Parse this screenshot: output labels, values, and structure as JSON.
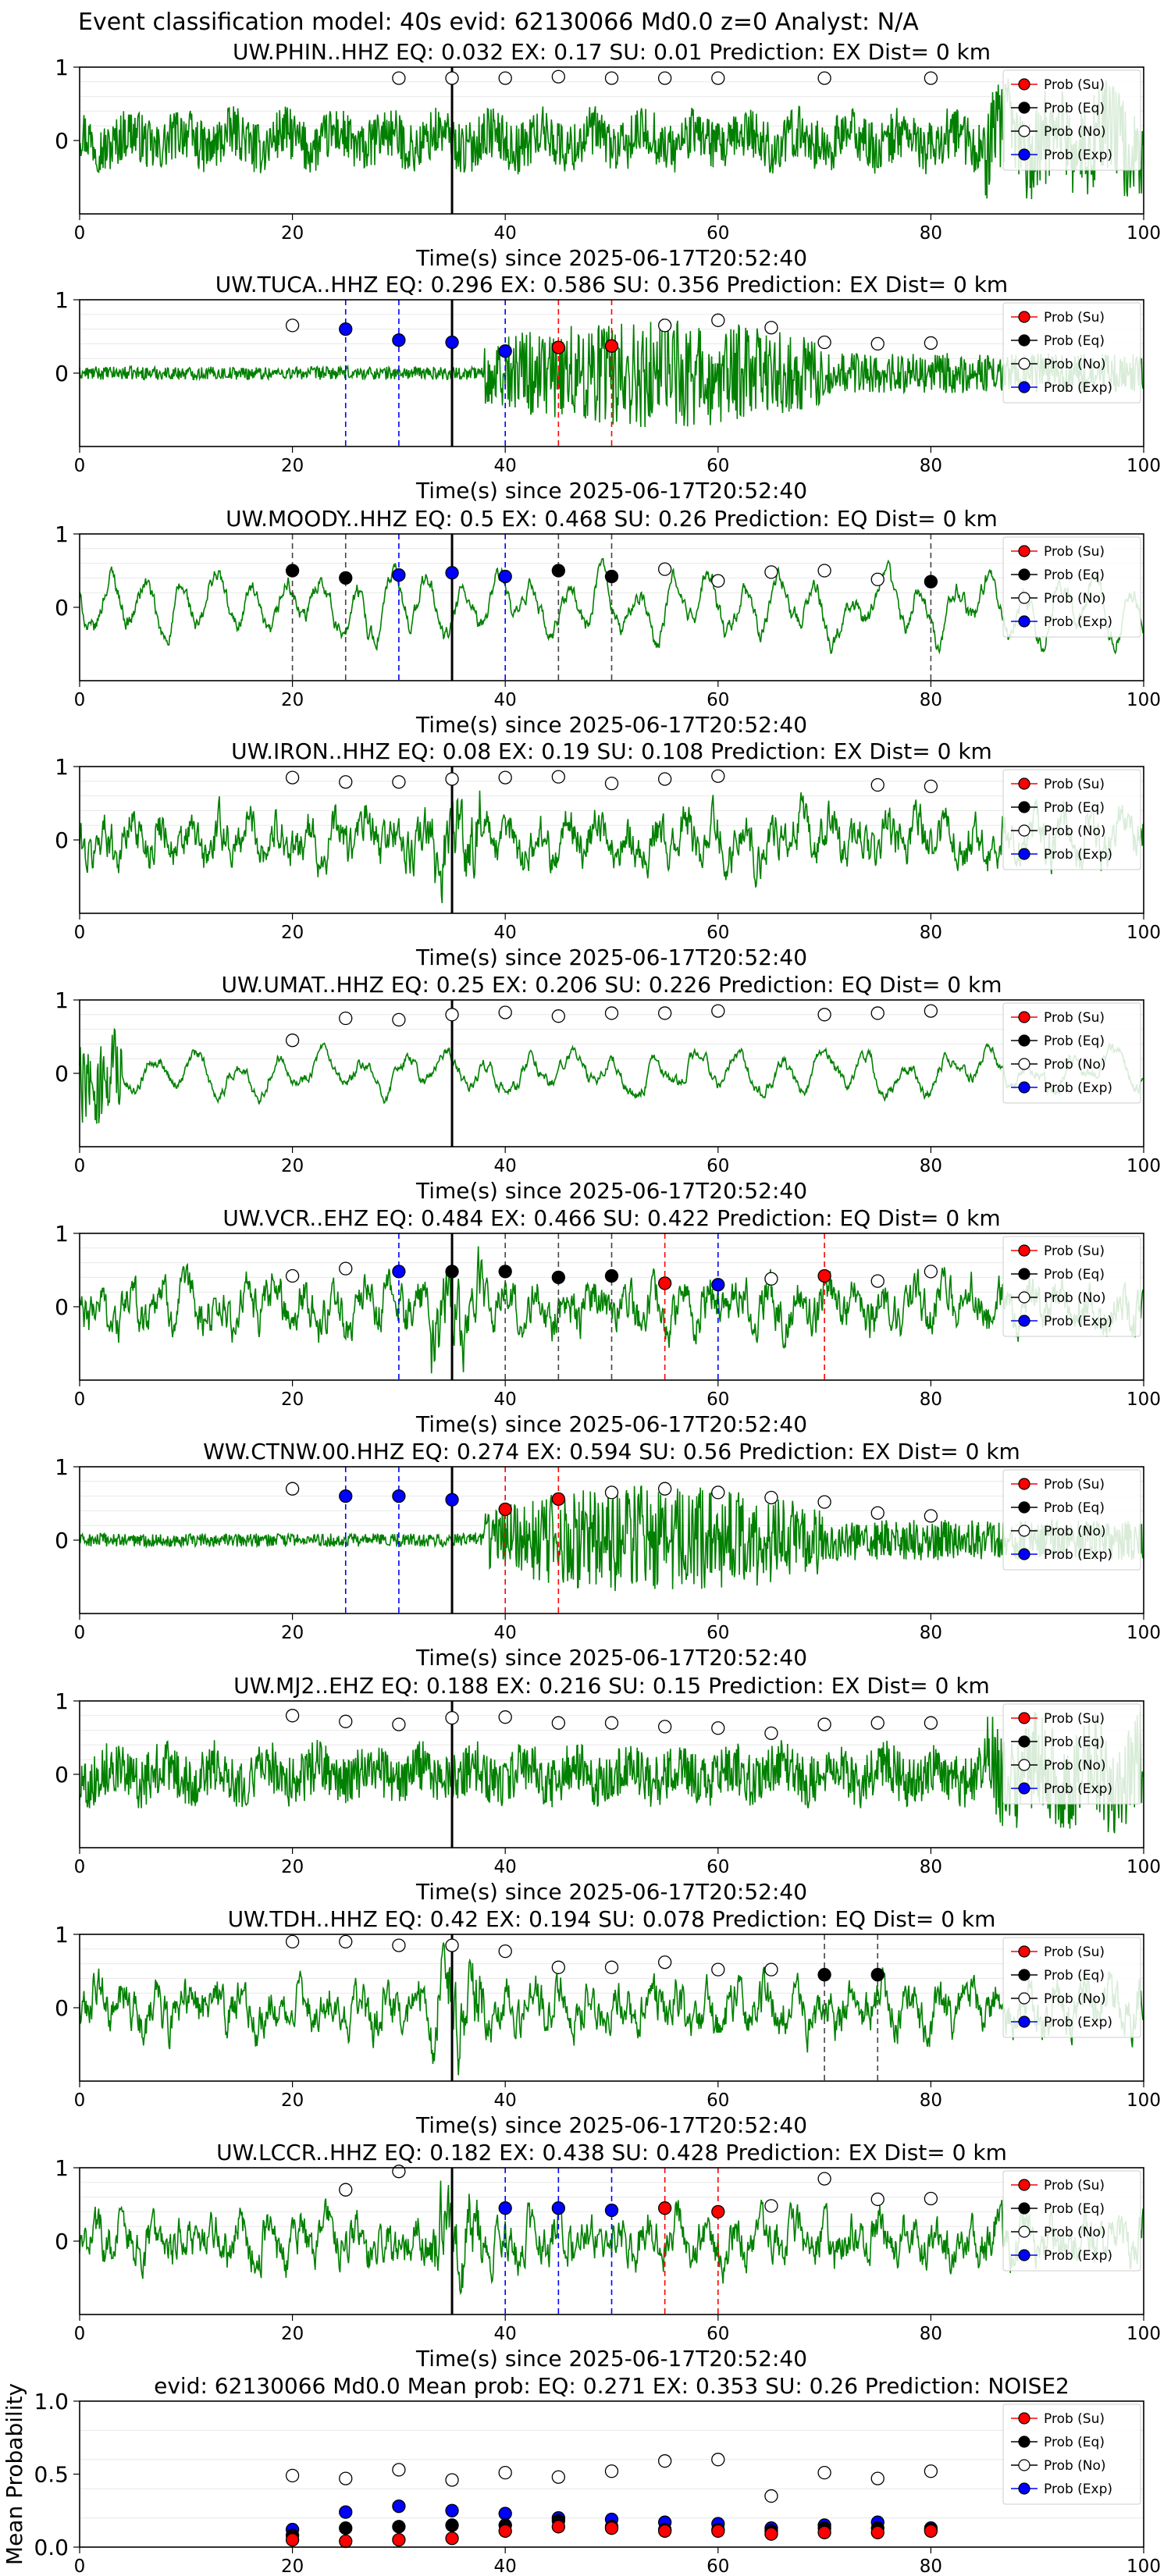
{
  "suptitle": "Event classification model: 40s evid: 62130066 Md0.0 z=0 Analyst: N/A",
  "legend_labels": [
    "Prob (Su)",
    "Prob (Eq)",
    "Prob (No)",
    "Prob (Exp)"
  ],
  "class_colors": {
    "su": "#ff0000",
    "eq": "#000000",
    "no": "#ffffff",
    "exp": "#0000ff"
  },
  "trace_color": "#008000",
  "window_times": [
    20,
    25,
    30,
    35,
    40,
    45,
    50,
    55,
    60,
    65,
    70,
    75,
    80
  ],
  "chart_data": [
    {
      "type": "line",
      "title": "UW.PHIN..HHZ   EQ: 0.032  EX: 0.17  SU: 0.01   Prediction: EX    Dist= 0 km",
      "xlabel": "Time(s) since 2025-06-17T20:52:40",
      "xlim": [
        0,
        100
      ],
      "ylim": [
        -1,
        1
      ],
      "xticks": [
        0,
        20,
        40,
        60,
        80,
        100
      ],
      "yticks": [
        1,
        0
      ],
      "onset_line_x": 35,
      "waveform": "high_freq",
      "points": [
        {
          "x": 30,
          "y": 0.85,
          "cls": "no"
        },
        {
          "x": 35,
          "y": 0.85,
          "cls": "no"
        },
        {
          "x": 40,
          "y": 0.85,
          "cls": "no"
        },
        {
          "x": 45,
          "y": 0.87,
          "cls": "no"
        },
        {
          "x": 50,
          "y": 0.85,
          "cls": "no"
        },
        {
          "x": 55,
          "y": 0.85,
          "cls": "no"
        },
        {
          "x": 60,
          "y": 0.85,
          "cls": "no"
        },
        {
          "x": 70,
          "y": 0.85,
          "cls": "no"
        },
        {
          "x": 80,
          "y": 0.85,
          "cls": "no"
        }
      ]
    },
    {
      "type": "line",
      "title": "UW.TUCA..HHZ   EQ: 0.296  EX: 0.586  SU: 0.356   Prediction: EX    Dist= 0 km",
      "xlabel": "Time(s) since 2025-06-17T20:52:40",
      "xlim": [
        0,
        100
      ],
      "ylim": [
        -1,
        1
      ],
      "xticks": [
        0,
        20,
        40,
        60,
        80,
        100
      ],
      "yticks": [
        1,
        0
      ],
      "onset_line_x": 35,
      "waveform": "burst",
      "points": [
        {
          "x": 20,
          "y": 0.65,
          "cls": "no"
        },
        {
          "x": 25,
          "y": 0.6,
          "cls": "exp"
        },
        {
          "x": 30,
          "y": 0.45,
          "cls": "exp"
        },
        {
          "x": 35,
          "y": 0.42,
          "cls": "exp"
        },
        {
          "x": 40,
          "y": 0.3,
          "cls": "exp"
        },
        {
          "x": 45,
          "y": 0.35,
          "cls": "su"
        },
        {
          "x": 50,
          "y": 0.37,
          "cls": "su"
        },
        {
          "x": 55,
          "y": 0.65,
          "cls": "no"
        },
        {
          "x": 60,
          "y": 0.72,
          "cls": "no"
        },
        {
          "x": 65,
          "y": 0.62,
          "cls": "no"
        },
        {
          "x": 70,
          "y": 0.42,
          "cls": "no"
        },
        {
          "x": 75,
          "y": 0.4,
          "cls": "no"
        },
        {
          "x": 80,
          "y": 0.41,
          "cls": "no"
        }
      ]
    },
    {
      "type": "line",
      "title": "UW.MOODY..HHZ   EQ: 0.5  EX: 0.468  SU: 0.26   Prediction: EQ    Dist= 0 km",
      "xlabel": "Time(s) since 2025-06-17T20:52:40",
      "xlim": [
        0,
        100
      ],
      "ylim": [
        -1,
        1
      ],
      "xticks": [
        0,
        20,
        40,
        60,
        80,
        100
      ],
      "yticks": [
        1,
        0
      ],
      "onset_line_x": 35,
      "waveform": "low_freq",
      "points": [
        {
          "x": 20,
          "y": 0.5,
          "cls": "eq"
        },
        {
          "x": 25,
          "y": 0.4,
          "cls": "eq"
        },
        {
          "x": 30,
          "y": 0.44,
          "cls": "exp"
        },
        {
          "x": 35,
          "y": 0.47,
          "cls": "exp"
        },
        {
          "x": 40,
          "y": 0.42,
          "cls": "exp"
        },
        {
          "x": 45,
          "y": 0.5,
          "cls": "eq"
        },
        {
          "x": 50,
          "y": 0.42,
          "cls": "eq"
        },
        {
          "x": 55,
          "y": 0.52,
          "cls": "no"
        },
        {
          "x": 60,
          "y": 0.36,
          "cls": "no"
        },
        {
          "x": 65,
          "y": 0.48,
          "cls": "no"
        },
        {
          "x": 70,
          "y": 0.5,
          "cls": "no"
        },
        {
          "x": 75,
          "y": 0.38,
          "cls": "no"
        },
        {
          "x": 80,
          "y": 0.35,
          "cls": "eq"
        }
      ]
    },
    {
      "type": "line",
      "title": "UW.IRON..HHZ   EQ: 0.08  EX: 0.19  SU: 0.108   Prediction: EX    Dist= 0 km",
      "xlabel": "Time(s) since 2025-06-17T20:52:40",
      "xlim": [
        0,
        100
      ],
      "ylim": [
        -1,
        1
      ],
      "xticks": [
        0,
        20,
        40,
        60,
        80,
        100
      ],
      "yticks": [
        1,
        0
      ],
      "onset_line_x": 35,
      "waveform": "mid_freq",
      "points": [
        {
          "x": 20,
          "y": 0.85,
          "cls": "no"
        },
        {
          "x": 25,
          "y": 0.79,
          "cls": "no"
        },
        {
          "x": 30,
          "y": 0.79,
          "cls": "no"
        },
        {
          "x": 35,
          "y": 0.83,
          "cls": "no"
        },
        {
          "x": 40,
          "y": 0.85,
          "cls": "no"
        },
        {
          "x": 45,
          "y": 0.86,
          "cls": "no"
        },
        {
          "x": 50,
          "y": 0.77,
          "cls": "no"
        },
        {
          "x": 55,
          "y": 0.83,
          "cls": "no"
        },
        {
          "x": 60,
          "y": 0.87,
          "cls": "no"
        },
        {
          "x": 75,
          "y": 0.75,
          "cls": "no"
        },
        {
          "x": 80,
          "y": 0.73,
          "cls": "no"
        }
      ]
    },
    {
      "type": "line",
      "title": "UW.UMAT..HHZ   EQ: 0.25  EX: 0.206  SU: 0.226   Prediction: EQ    Dist= 0 km",
      "xlabel": "Time(s) since 2025-06-17T20:52:40",
      "xlim": [
        0,
        100
      ],
      "ylim": [
        -1,
        1
      ],
      "xticks": [
        0,
        20,
        40,
        60,
        80,
        100
      ],
      "yticks": [
        1,
        0
      ],
      "onset_line_x": 35,
      "waveform": "low_freq_quiet",
      "points": [
        {
          "x": 20,
          "y": 0.45,
          "cls": "no"
        },
        {
          "x": 25,
          "y": 0.75,
          "cls": "no"
        },
        {
          "x": 30,
          "y": 0.73,
          "cls": "no"
        },
        {
          "x": 35,
          "y": 0.8,
          "cls": "no"
        },
        {
          "x": 40,
          "y": 0.83,
          "cls": "no"
        },
        {
          "x": 45,
          "y": 0.78,
          "cls": "no"
        },
        {
          "x": 50,
          "y": 0.82,
          "cls": "no"
        },
        {
          "x": 55,
          "y": 0.82,
          "cls": "no"
        },
        {
          "x": 60,
          "y": 0.85,
          "cls": "no"
        },
        {
          "x": 70,
          "y": 0.8,
          "cls": "no"
        },
        {
          "x": 75,
          "y": 0.82,
          "cls": "no"
        },
        {
          "x": 80,
          "y": 0.85,
          "cls": "no"
        }
      ]
    },
    {
      "type": "line",
      "title": "UW.VCR..EHZ   EQ: 0.484  EX: 0.466  SU: 0.422   Prediction: EQ    Dist= 0 km",
      "xlabel": "Time(s) since 2025-06-17T20:52:40",
      "xlim": [
        0,
        100
      ],
      "ylim": [
        -1,
        1
      ],
      "xticks": [
        0,
        20,
        40,
        60,
        80,
        100
      ],
      "yticks": [
        1,
        0
      ],
      "onset_line_x": 35,
      "waveform": "mid_freq",
      "points": [
        {
          "x": 20,
          "y": 0.42,
          "cls": "no"
        },
        {
          "x": 25,
          "y": 0.52,
          "cls": "no"
        },
        {
          "x": 30,
          "y": 0.48,
          "cls": "exp"
        },
        {
          "x": 35,
          "y": 0.48,
          "cls": "eq"
        },
        {
          "x": 40,
          "y": 0.48,
          "cls": "eq"
        },
        {
          "x": 45,
          "y": 0.4,
          "cls": "eq"
        },
        {
          "x": 50,
          "y": 0.42,
          "cls": "eq"
        },
        {
          "x": 55,
          "y": 0.32,
          "cls": "su"
        },
        {
          "x": 60,
          "y": 0.3,
          "cls": "exp"
        },
        {
          "x": 65,
          "y": 0.38,
          "cls": "no"
        },
        {
          "x": 70,
          "y": 0.42,
          "cls": "su"
        },
        {
          "x": 75,
          "y": 0.35,
          "cls": "no"
        },
        {
          "x": 80,
          "y": 0.48,
          "cls": "no"
        }
      ]
    },
    {
      "type": "line",
      "title": "WW.CTNW.00.HHZ   EQ: 0.274  EX: 0.594  SU: 0.56   Prediction: EX    Dist= 0 km",
      "xlabel": "Time(s) since 2025-06-17T20:52:40",
      "xlim": [
        0,
        100
      ],
      "ylim": [
        -1,
        1
      ],
      "xticks": [
        0,
        20,
        40,
        60,
        80,
        100
      ],
      "yticks": [
        1,
        0
      ],
      "onset_line_x": 35,
      "waveform": "burst",
      "points": [
        {
          "x": 20,
          "y": 0.7,
          "cls": "no"
        },
        {
          "x": 25,
          "y": 0.6,
          "cls": "exp"
        },
        {
          "x": 30,
          "y": 0.6,
          "cls": "exp"
        },
        {
          "x": 35,
          "y": 0.55,
          "cls": "exp"
        },
        {
          "x": 40,
          "y": 0.42,
          "cls": "su"
        },
        {
          "x": 45,
          "y": 0.56,
          "cls": "su"
        },
        {
          "x": 50,
          "y": 0.65,
          "cls": "no"
        },
        {
          "x": 55,
          "y": 0.7,
          "cls": "no"
        },
        {
          "x": 60,
          "y": 0.65,
          "cls": "no"
        },
        {
          "x": 65,
          "y": 0.58,
          "cls": "no"
        },
        {
          "x": 70,
          "y": 0.52,
          "cls": "no"
        },
        {
          "x": 75,
          "y": 0.37,
          "cls": "no"
        },
        {
          "x": 80,
          "y": 0.33,
          "cls": "no"
        }
      ]
    },
    {
      "type": "line",
      "title": "UW.MJ2..EHZ   EQ: 0.188  EX: 0.216  SU: 0.15   Prediction: EX    Dist= 0 km",
      "xlabel": "Time(s) since 2025-06-17T20:52:40",
      "xlim": [
        0,
        100
      ],
      "ylim": [
        -1,
        1
      ],
      "xticks": [
        0,
        20,
        40,
        60,
        80,
        100
      ],
      "yticks": [
        1,
        0
      ],
      "onset_line_x": 35,
      "waveform": "high_freq",
      "points": [
        {
          "x": 20,
          "y": 0.8,
          "cls": "no"
        },
        {
          "x": 25,
          "y": 0.72,
          "cls": "no"
        },
        {
          "x": 30,
          "y": 0.68,
          "cls": "no"
        },
        {
          "x": 35,
          "y": 0.77,
          "cls": "no"
        },
        {
          "x": 40,
          "y": 0.78,
          "cls": "no"
        },
        {
          "x": 45,
          "y": 0.7,
          "cls": "no"
        },
        {
          "x": 50,
          "y": 0.7,
          "cls": "no"
        },
        {
          "x": 55,
          "y": 0.65,
          "cls": "no"
        },
        {
          "x": 60,
          "y": 0.63,
          "cls": "no"
        },
        {
          "x": 65,
          "y": 0.56,
          "cls": "no"
        },
        {
          "x": 70,
          "y": 0.68,
          "cls": "no"
        },
        {
          "x": 75,
          "y": 0.7,
          "cls": "no"
        },
        {
          "x": 80,
          "y": 0.7,
          "cls": "no"
        }
      ]
    },
    {
      "type": "line",
      "title": "UW.TDH..HHZ   EQ: 0.42  EX: 0.194  SU: 0.078   Prediction: EQ    Dist= 0 km",
      "xlabel": "Time(s) since 2025-06-17T20:52:40",
      "xlim": [
        0,
        100
      ],
      "ylim": [
        -1,
        1
      ],
      "xticks": [
        0,
        20,
        40,
        60,
        80,
        100
      ],
      "yticks": [
        1,
        0
      ],
      "onset_line_x": 35,
      "waveform": "mid_freq",
      "points": [
        {
          "x": 20,
          "y": 0.9,
          "cls": "no"
        },
        {
          "x": 25,
          "y": 0.9,
          "cls": "no"
        },
        {
          "x": 30,
          "y": 0.85,
          "cls": "no"
        },
        {
          "x": 35,
          "y": 0.85,
          "cls": "no"
        },
        {
          "x": 40,
          "y": 0.77,
          "cls": "no"
        },
        {
          "x": 45,
          "y": 0.55,
          "cls": "no"
        },
        {
          "x": 50,
          "y": 0.55,
          "cls": "no"
        },
        {
          "x": 55,
          "y": 0.62,
          "cls": "no"
        },
        {
          "x": 60,
          "y": 0.52,
          "cls": "no"
        },
        {
          "x": 65,
          "y": 0.52,
          "cls": "no"
        },
        {
          "x": 70,
          "y": 0.45,
          "cls": "eq"
        },
        {
          "x": 75,
          "y": 0.45,
          "cls": "eq"
        }
      ]
    },
    {
      "type": "line",
      "title": "UW.LCCR..HHZ   EQ: 0.182  EX: 0.438  SU: 0.428   Prediction: EX    Dist= 0 km",
      "xlabel": "Time(s) since 2025-06-17T20:52:40",
      "xlim": [
        0,
        100
      ],
      "ylim": [
        -1,
        1
      ],
      "xticks": [
        0,
        20,
        40,
        60,
        80,
        100
      ],
      "yticks": [
        1,
        0
      ],
      "onset_line_x": 35,
      "waveform": "mid_freq",
      "points": [
        {
          "x": 25,
          "y": 0.7,
          "cls": "no"
        },
        {
          "x": 30,
          "y": 0.95,
          "cls": "no"
        },
        {
          "x": 40,
          "y": 0.45,
          "cls": "exp"
        },
        {
          "x": 45,
          "y": 0.45,
          "cls": "exp"
        },
        {
          "x": 50,
          "y": 0.42,
          "cls": "exp"
        },
        {
          "x": 55,
          "y": 0.45,
          "cls": "su"
        },
        {
          "x": 60,
          "y": 0.4,
          "cls": "su"
        },
        {
          "x": 65,
          "y": 0.48,
          "cls": "no"
        },
        {
          "x": 70,
          "y": 0.85,
          "cls": "no"
        },
        {
          "x": 75,
          "y": 0.57,
          "cls": "no"
        },
        {
          "x": 80,
          "y": 0.58,
          "cls": "no"
        }
      ]
    },
    {
      "type": "scatter",
      "title": "evid: 62130066  Md0.0   Mean prob:   EQ: 0.271  EX: 0.353  SU: 0.26   Prediction: NOISE2",
      "ylabel": "Mean Probability",
      "xlim": [
        0,
        100
      ],
      "ylim": [
        0,
        1
      ],
      "xticks": [
        0,
        20,
        40,
        60,
        80,
        100
      ],
      "yticks": [
        0.0,
        0.5,
        1.0
      ],
      "yticklabels": [
        "0.0",
        "0.5",
        "1.0"
      ],
      "x": [
        20,
        25,
        30,
        35,
        40,
        45,
        50,
        55,
        60,
        65,
        70,
        75,
        80
      ],
      "series": [
        {
          "name": "Prob (No)",
          "cls": "no",
          "values": [
            0.49,
            0.47,
            0.53,
            0.46,
            0.51,
            0.48,
            0.52,
            0.59,
            0.6,
            0.35,
            0.51,
            0.47,
            0.52
          ]
        },
        {
          "name": "Prob (Exp)",
          "cls": "exp",
          "values": [
            0.12,
            0.24,
            0.28,
            0.25,
            0.23,
            0.2,
            0.19,
            0.17,
            0.16,
            0.13,
            0.15,
            0.17,
            0.13
          ]
        },
        {
          "name": "Prob (Eq)",
          "cls": "eq",
          "values": [
            0.08,
            0.13,
            0.14,
            0.15,
            0.15,
            0.18,
            0.14,
            0.12,
            0.12,
            0.11,
            0.13,
            0.13,
            0.12
          ]
        },
        {
          "name": "Prob (Su)",
          "cls": "su",
          "values": [
            0.05,
            0.04,
            0.05,
            0.06,
            0.11,
            0.14,
            0.13,
            0.11,
            0.11,
            0.09,
            0.1,
            0.1,
            0.11
          ]
        }
      ]
    }
  ]
}
